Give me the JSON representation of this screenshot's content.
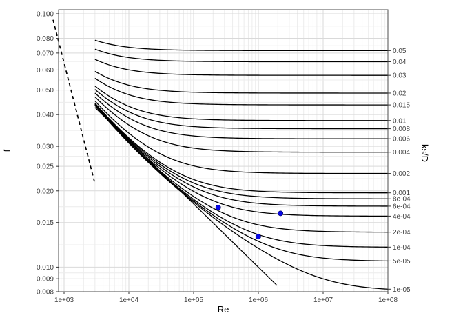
{
  "figure": {
    "background": "#ffffff"
  },
  "chart_data": {
    "type": "line",
    "title": "",
    "xlabel": "Re",
    "ylabel": "f",
    "y2label": "ks/D",
    "x_scale": "log10",
    "y_scale": "log10",
    "grid": true,
    "x_domain_log10": [
      2.915,
      8.0
    ],
    "y_domain_log10": [
      -2.0969,
      -0.9838
    ],
    "x_ticks": [
      {
        "value": 1000,
        "label": "1e+03"
      },
      {
        "value": 10000,
        "label": "1e+04"
      },
      {
        "value": 100000,
        "label": "1e+05"
      },
      {
        "value": 1000000,
        "label": "1e+06"
      },
      {
        "value": 10000000,
        "label": "1e+07"
      },
      {
        "value": 100000000,
        "label": "1e+08"
      }
    ],
    "y_ticks": [
      {
        "value": 0.1,
        "label": "0.100"
      },
      {
        "value": 0.08,
        "label": "0.080"
      },
      {
        "value": 0.07,
        "label": "0.070"
      },
      {
        "value": 0.06,
        "label": "0.060"
      },
      {
        "value": 0.05,
        "label": "0.050"
      },
      {
        "value": 0.04,
        "label": "0.040"
      },
      {
        "value": 0.03,
        "label": "0.030"
      },
      {
        "value": 0.025,
        "label": "0.025"
      },
      {
        "value": 0.02,
        "label": "0.020"
      },
      {
        "value": 0.015,
        "label": "0.015"
      },
      {
        "value": 0.01,
        "label": "0.010"
      },
      {
        "value": 0.009,
        "label": "0.009"
      },
      {
        "value": 0.008,
        "label": "0.008"
      }
    ],
    "series": {
      "colebrook_curves": {
        "model": "colebrook",
        "re_start": 3000,
        "re_end": 100000000,
        "color": "#000000",
        "ks_over_D": [
          0.05,
          0.04,
          0.03,
          0.02,
          0.015,
          0.01,
          0.008,
          0.006,
          0.004,
          0.002,
          0.001,
          0.0008,
          0.0006,
          0.0004,
          0.0002,
          0.0001,
          5e-05,
          1e-05
        ],
        "labels": [
          "0.05",
          "0.04",
          "0.03",
          "0.02",
          "0.015",
          "0.01",
          "0.008",
          "0.006",
          "0.004",
          "0.002",
          "0.001",
          "8e-04",
          "6e-04",
          "4e-04",
          "2e-04",
          "1e-04",
          "5e-05",
          "1e-05"
        ]
      },
      "laminar_line": {
        "model": "f = 64/Re",
        "re_start": 676,
        "re_end": 2940,
        "linestyle": "dashed",
        "color": "#000000"
      },
      "blasius_line": {
        "model": "f = 0.316*Re^-0.25",
        "re_start": 3000,
        "re_end": 1940000,
        "linestyle": "solid",
        "color": "#000000"
      },
      "points": {
        "color": "#0808e8",
        "values": [
          {
            "Re": 240000,
            "f": 0.0172
          },
          {
            "Re": 1000000,
            "f": 0.0132
          },
          {
            "Re": 2200000,
            "f": 0.0163
          }
        ]
      }
    },
    "colors": {
      "grid_major": "#d9d9d9",
      "grid_minor": "#ececec",
      "panel_border": "#4d4d4d",
      "panel_fill": "#ffffff",
      "tick_mark": "#333333",
      "tick_label": "#404040",
      "axis_title": "#000000",
      "curve": "#000000"
    }
  }
}
